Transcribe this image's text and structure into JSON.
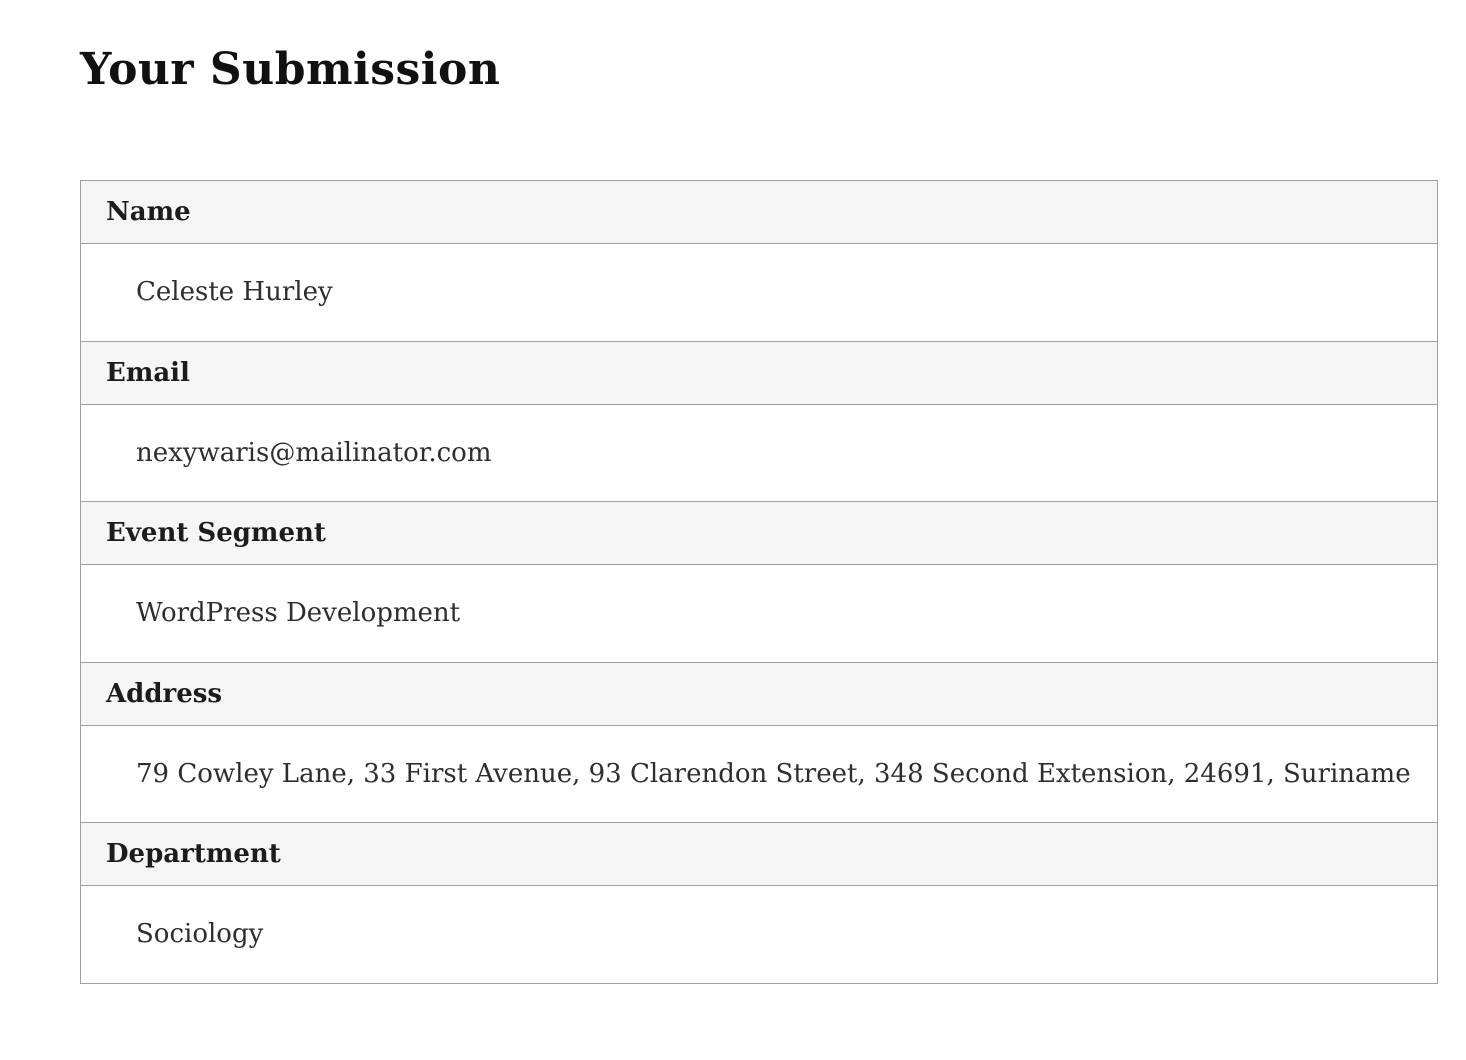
{
  "page": {
    "title": "Your Submission"
  },
  "colors": {
    "title_text": "#111111",
    "header_text": "#1c1c1c",
    "value_text": "#2e2e2e",
    "border": "#a0a0a0",
    "header_bg": "#f5f5f5",
    "row_bg": "#ffffff",
    "page_bg": "#ffffff"
  },
  "submission": {
    "fields": [
      {
        "label": "Name",
        "value": "Celeste Hurley"
      },
      {
        "label": "Email",
        "value": "nexywaris@mailinator.com"
      },
      {
        "label": "Event Segment",
        "value": "WordPress Development"
      },
      {
        "label": "Address",
        "value": "79 Cowley Lane, 33 First Avenue, 93 Clarendon Street, 348 Second Extension, 24691, Suriname"
      },
      {
        "label": "Department",
        "value": "Sociology"
      }
    ]
  }
}
